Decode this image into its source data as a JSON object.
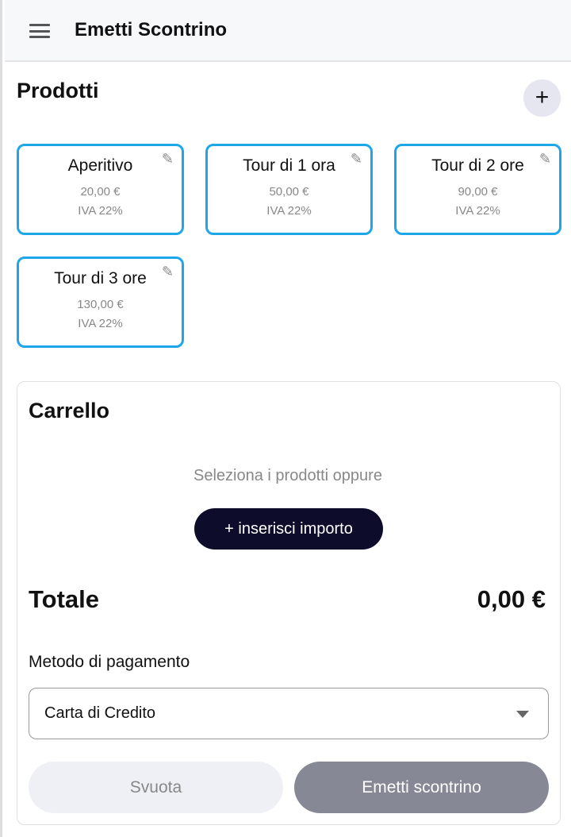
{
  "header": {
    "title": "Emetti Scontrino",
    "menu_icon": "hamburger-icon"
  },
  "products": {
    "title": "Prodotti",
    "add_label": "+",
    "items": [
      {
        "name": "Aperitivo",
        "price": "20,00 €",
        "vat": "IVA 22%"
      },
      {
        "name": "Tour di 1 ora",
        "price": "50,00 €",
        "vat": "IVA 22%"
      },
      {
        "name": "Tour di 2 ore",
        "price": "90,00 €",
        "vat": "IVA 22%"
      },
      {
        "name": "Tour di 3 ore",
        "price": "130,00 €",
        "vat": "IVA 22%"
      }
    ]
  },
  "cart": {
    "title": "Carrello",
    "hint": "Seleziona i prodotti oppure",
    "amount_button": "+ inserisci importo",
    "total_label": "Totale",
    "total_value": "0,00 €",
    "payment_label": "Metodo di pagamento",
    "payment_value": "Carta di Credito",
    "clear_label": "Svuota",
    "emit_label": "Emetti scontrino"
  },
  "colors": {
    "accent": "#1ea7e8",
    "primary_dark": "#0d0d2b"
  }
}
